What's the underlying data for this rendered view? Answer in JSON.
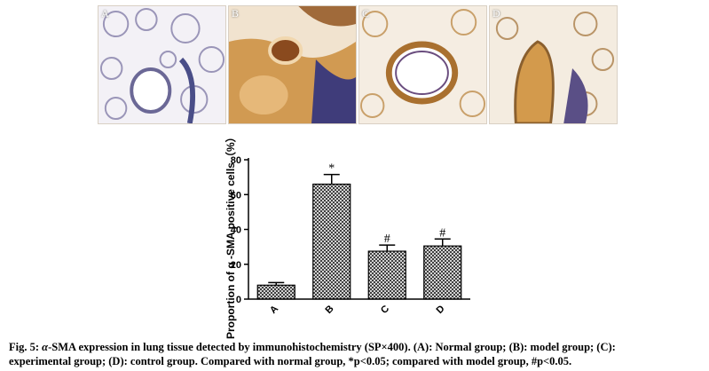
{
  "panels": [
    {
      "label": "A",
      "tone": "#c9c6d8"
    },
    {
      "label": "B",
      "tone": "#c98a3e"
    },
    {
      "label": "C",
      "tone": "#c9a06a"
    },
    {
      "label": "D",
      "tone": "#c4935a"
    }
  ],
  "chart_data": {
    "type": "bar",
    "categories": [
      "A",
      "B",
      "C",
      "D"
    ],
    "values": [
      8,
      66,
      27.5,
      30.5
    ],
    "errors": [
      1.5,
      5.5,
      3.5,
      4
    ],
    "annotations": [
      "",
      "*",
      "#",
      "#"
    ],
    "ylabel": "Proportion of α -SMA positive cells（%）",
    "ylim": [
      0,
      80
    ],
    "yticks": [
      0,
      20,
      40,
      60,
      80
    ],
    "grid": false,
    "bar_fill": "crosshatch"
  },
  "caption": {
    "lead": "Fig. 5: ",
    "alpha": "α",
    "line1": "-SMA expression in lung tissue detected by immunohistochemistry (SP×400). (A): Normal group; (B): model group; (C):",
    "line2": "experimental group; (D): control group. Compared with normal group, *p<0.05; compared with model group, #p<0.05."
  }
}
